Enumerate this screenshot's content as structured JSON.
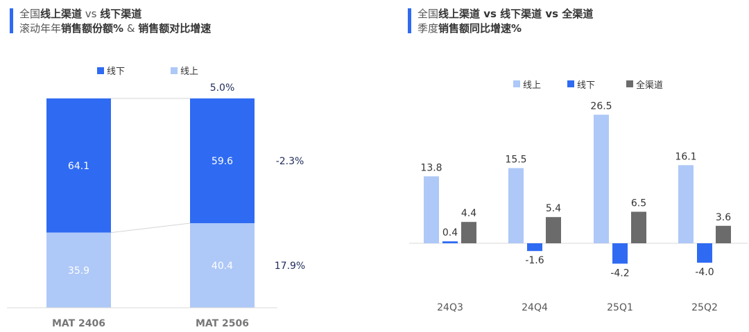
{
  "left_header": {
    "line1_a": "全国",
    "line1_b": "线上渠道",
    "line1_c": " vs ",
    "line1_d": "线下渠道",
    "line2_a": "滚动年年",
    "line2_b": "销售额份额%",
    "line2_c": " & ",
    "line2_d": "销售额对比增速"
  },
  "right_header": {
    "line1_a": "全国",
    "line1_b": "线上渠道 vs 线下渠道 vs 全渠道",
    "line2_a": "季度",
    "line2_b": "销售额同比增速%"
  },
  "colors": {
    "offline": "#2f6bf2",
    "online": "#aec8f7",
    "total": "#6b6b6b",
    "growth_text": "#1e2a5a"
  },
  "chart_data": [
    {
      "type": "bar",
      "stacked": true,
      "percent_stacked": true,
      "categories": [
        "MAT 2406",
        "MAT 2506"
      ],
      "series": [
        {
          "name": "线下",
          "values": [
            64.1,
            59.6
          ]
        },
        {
          "name": "线上",
          "values": [
            35.9,
            40.4
          ]
        }
      ],
      "legend": "top",
      "growth_labels": {
        "total": "5.0%",
        "offline": "-2.3%",
        "online": "17.9%"
      },
      "ylim": [
        0,
        100
      ]
    },
    {
      "type": "bar",
      "categories": [
        "24Q3",
        "24Q4",
        "25Q1",
        "25Q2"
      ],
      "series": [
        {
          "name": "线上",
          "values": [
            13.8,
            15.5,
            26.5,
            16.1
          ]
        },
        {
          "name": "线下",
          "values": [
            0.4,
            -1.6,
            -4.2,
            -4.0
          ]
        },
        {
          "name": "全渠道",
          "values": [
            4.4,
            5.4,
            6.5,
            3.6
          ]
        }
      ],
      "legend": "top"
    }
  ]
}
